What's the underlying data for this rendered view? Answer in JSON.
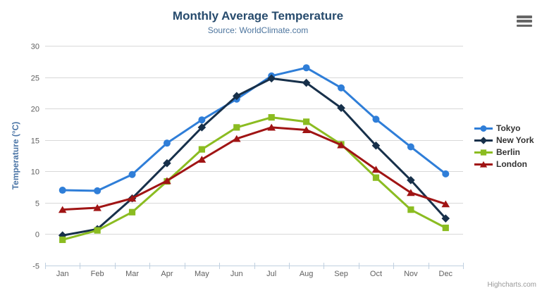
{
  "chart": {
    "title": "Monthly Average Temperature",
    "subtitle": "Source: WorldClimate.com",
    "credits": "Highcharts.com",
    "context_menu_icon": "hamburger"
  },
  "chart_data": {
    "type": "line",
    "title": "Monthly Average Temperature",
    "subtitle": "Source: WorldClimate.com",
    "categories": [
      "Jan",
      "Feb",
      "Mar",
      "Apr",
      "May",
      "Jun",
      "Jul",
      "Aug",
      "Sep",
      "Oct",
      "Nov",
      "Dec"
    ],
    "xlabel": "",
    "ylabel": "Temperature (°C)",
    "ylim": [
      -5,
      30
    ],
    "yticks": [
      -5,
      0,
      5,
      10,
      15,
      20,
      25,
      30
    ],
    "grid": true,
    "legend_position": "right",
    "series": [
      {
        "name": "Tokyo",
        "color": "#2f7ed8",
        "marker": "circle",
        "values": [
          7.0,
          6.9,
          9.5,
          14.5,
          18.2,
          21.5,
          25.2,
          26.5,
          23.3,
          18.3,
          13.9,
          9.6
        ]
      },
      {
        "name": "New York",
        "color": "#17304a",
        "marker": "diamond",
        "values": [
          -0.2,
          0.8,
          5.7,
          11.3,
          17.0,
          22.0,
          24.8,
          24.1,
          20.1,
          14.1,
          8.6,
          2.5
        ]
      },
      {
        "name": "Berlin",
        "color": "#8bbc21",
        "marker": "square",
        "values": [
          -0.9,
          0.6,
          3.5,
          8.4,
          13.5,
          17.0,
          18.6,
          17.9,
          14.3,
          9.0,
          3.9,
          1.0
        ]
      },
      {
        "name": "London",
        "color": "#a01414",
        "marker": "triangle",
        "values": [
          3.9,
          4.2,
          5.7,
          8.5,
          11.9,
          15.2,
          17.0,
          16.6,
          14.2,
          10.3,
          6.6,
          4.8
        ]
      }
    ]
  },
  "colors": {
    "title": "#274b6d",
    "subtitle": "#4d759e",
    "axis_title": "#4a74a5",
    "axis_labels": "#606060",
    "gridline": "#d8d8d8",
    "axis_line": "#c0d0e0",
    "legend_text": "#333333",
    "credits_text": "#999999",
    "menu_icon": "#666666"
  }
}
